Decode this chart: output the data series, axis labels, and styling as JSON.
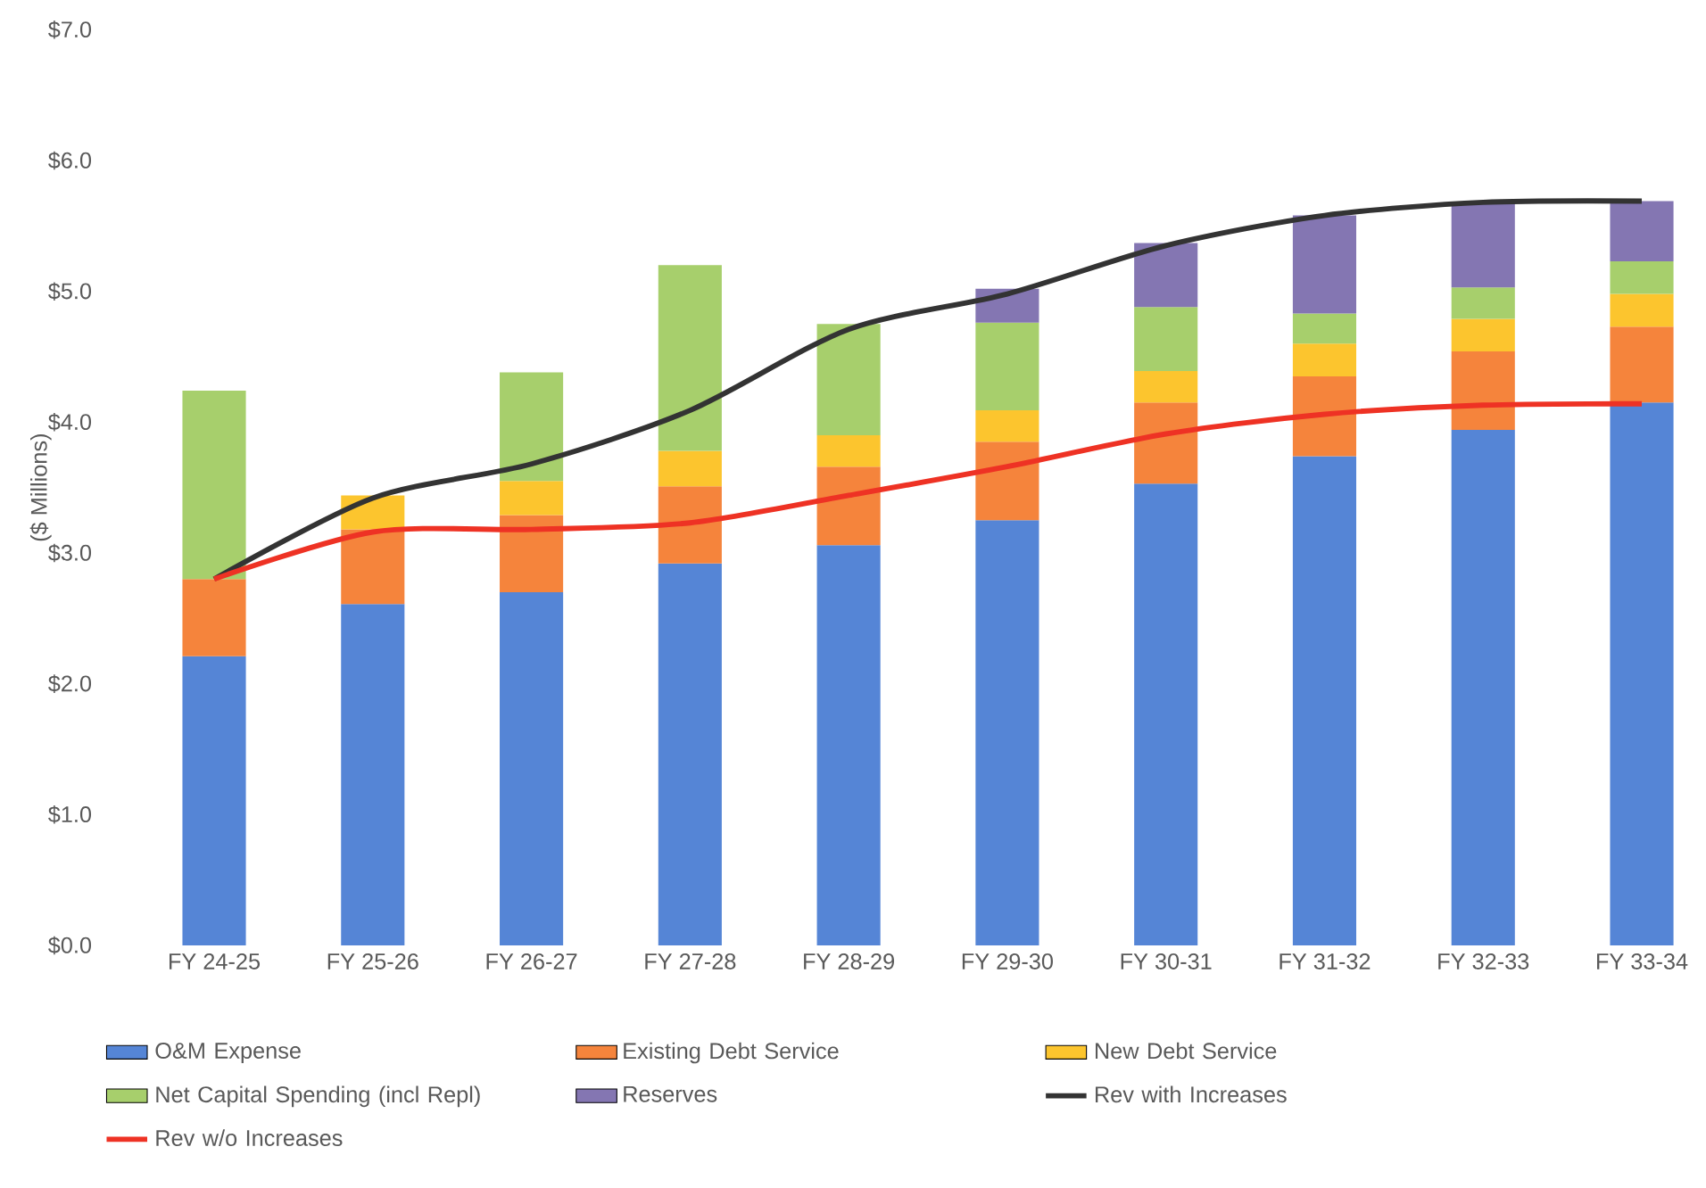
{
  "chart_data": {
    "type": "bar",
    "stacked": true,
    "ylabel": "($ Millions)",
    "categories": [
      "FY 24-25",
      "FY 25-26",
      "FY 26-27",
      "FY 27-28",
      "FY 28-29",
      "FY 29-30",
      "FY 30-31",
      "FY 31-32",
      "FY 32-33",
      "FY 33-34"
    ],
    "series": [
      {
        "name": "O&M Expense",
        "color": "#5585d6",
        "values": [
          2.21,
          2.61,
          2.7,
          2.92,
          3.06,
          3.25,
          3.53,
          3.74,
          3.94,
          4.15
        ]
      },
      {
        "name": "Existing Debt Service",
        "color": "#f5843c",
        "values": [
          0.59,
          0.57,
          0.59,
          0.59,
          0.6,
          0.6,
          0.62,
          0.61,
          0.6,
          0.58
        ]
      },
      {
        "name": "New Debt Service",
        "color": "#fcc52e",
        "values": [
          null,
          0.26,
          0.26,
          0.27,
          0.24,
          0.24,
          0.24,
          0.25,
          0.25,
          0.25
        ]
      },
      {
        "name": "Net Capital Spending (incl Repl)",
        "color": "#a7cf6c",
        "values": [
          1.44,
          null,
          0.83,
          1.42,
          0.85,
          0.67,
          0.49,
          0.23,
          0.24,
          0.25
        ]
      },
      {
        "name": "Reserves",
        "color": "#8476b2",
        "values": [
          null,
          null,
          null,
          null,
          null,
          0.26,
          0.49,
          0.75,
          0.65,
          0.46
        ]
      },
      {
        "name": "Rev with Increases",
        "type": "line",
        "color": "#333333",
        "values": [
          2.8,
          3.42,
          3.68,
          4.09,
          4.71,
          4.98,
          5.35,
          5.58,
          5.68,
          5.69
        ]
      },
      {
        "name": "Rev w/o Increases",
        "type": "line",
        "color": "#ee3224",
        "values": [
          2.8,
          3.16,
          3.18,
          3.23,
          3.44,
          3.66,
          3.91,
          4.06,
          4.13,
          4.14
        ]
      }
    ],
    "ylim": [
      0,
      7
    ],
    "yticks": [
      {
        "value": 0,
        "label": "$0.0"
      },
      {
        "value": 1,
        "label": "$1.0"
      },
      {
        "value": 2,
        "label": "$2.0"
      },
      {
        "value": 3,
        "label": "$3.0"
      },
      {
        "value": 4,
        "label": "$4.0"
      },
      {
        "value": 5,
        "label": "$5.0"
      },
      {
        "value": 6,
        "label": "$6.0"
      },
      {
        "value": 7,
        "label": "$7.0"
      }
    ],
    "legend": "bottom"
  }
}
